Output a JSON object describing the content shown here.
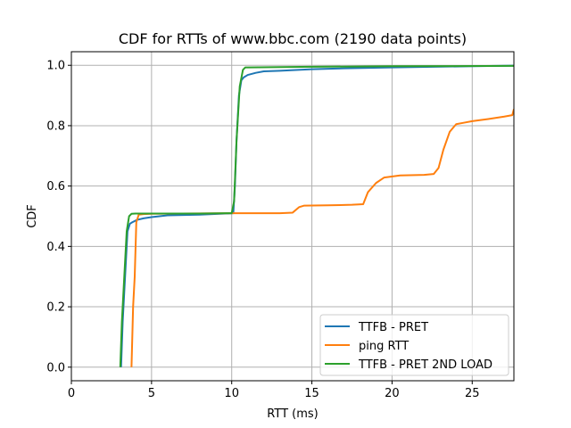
{
  "chart_data": {
    "type": "line",
    "title": "CDF for RTTs of www.bbc.com (2190 data points)",
    "xlabel": "RTT (ms)",
    "ylabel": "CDF",
    "xlim": [
      0,
      27.6
    ],
    "ylim": [
      -0.045,
      1.045
    ],
    "xticks": [
      0,
      5,
      10,
      15,
      20,
      25
    ],
    "yticks": [
      0.0,
      0.2,
      0.4,
      0.6,
      0.8,
      1.0
    ],
    "xtick_labels": [
      "0",
      "5",
      "10",
      "15",
      "20",
      "25"
    ],
    "ytick_labels": [
      "0.0",
      "0.2",
      "0.4",
      "0.6",
      "0.8",
      "1.0"
    ],
    "grid": true,
    "legend_position": "lower-right",
    "series": [
      {
        "name": "TTFB - PRET",
        "color": "#1f77b4",
        "x": [
          3.1,
          3.2,
          3.35,
          3.5,
          3.65,
          3.8,
          4.1,
          4.5,
          5.0,
          5.5,
          6.0,
          8.0,
          10.1,
          10.2,
          10.3,
          10.45,
          10.6,
          10.75,
          11.0,
          11.5,
          12.0,
          13.0,
          15.0,
          17.0,
          20.0,
          25.0,
          27.6
        ],
        "y": [
          0.0,
          0.15,
          0.3,
          0.45,
          0.475,
          0.48,
          0.488,
          0.493,
          0.497,
          0.5,
          0.503,
          0.505,
          0.51,
          0.6,
          0.75,
          0.9,
          0.95,
          0.96,
          0.968,
          0.975,
          0.98,
          0.982,
          0.987,
          0.99,
          0.993,
          0.997,
          0.999
        ]
      },
      {
        "name": "ping RTT",
        "color": "#ff7f0e",
        "x": [
          3.75,
          3.85,
          3.95,
          4.05,
          4.2,
          4.5,
          5.0,
          10.0,
          13.0,
          13.8,
          14.2,
          14.5,
          16.0,
          17.5,
          18.2,
          18.5,
          19.0,
          19.5,
          20.5,
          22.0,
          22.6,
          22.9,
          23.2,
          23.6,
          24.0,
          24.5,
          25.0,
          26.0,
          27.0,
          27.5,
          27.6
        ],
        "y": [
          0.0,
          0.2,
          0.3,
          0.48,
          0.505,
          0.507,
          0.508,
          0.51,
          0.51,
          0.512,
          0.53,
          0.535,
          0.536,
          0.538,
          0.54,
          0.58,
          0.61,
          0.628,
          0.635,
          0.637,
          0.64,
          0.66,
          0.72,
          0.78,
          0.805,
          0.81,
          0.815,
          0.822,
          0.83,
          0.835,
          0.855
        ]
      },
      {
        "name": "TTFB - PRET 2ND LOAD",
        "color": "#2ca02c",
        "x": [
          3.05,
          3.15,
          3.3,
          3.45,
          3.6,
          3.75,
          4.0,
          6.0,
          8.0,
          10.0,
          10.15,
          10.3,
          10.5,
          10.7,
          10.85,
          11.0,
          15.0,
          20.0,
          27.6
        ],
        "y": [
          0.0,
          0.15,
          0.3,
          0.45,
          0.5,
          0.508,
          0.509,
          0.509,
          0.509,
          0.51,
          0.55,
          0.75,
          0.93,
          0.985,
          0.993,
          0.993,
          0.995,
          0.997,
          0.998
        ]
      }
    ]
  }
}
